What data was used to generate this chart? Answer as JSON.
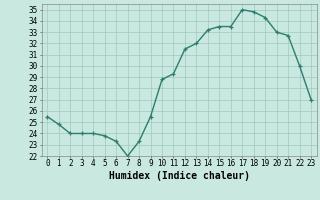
{
  "x": [
    0,
    1,
    2,
    3,
    4,
    5,
    6,
    7,
    8,
    9,
    10,
    11,
    12,
    13,
    14,
    15,
    16,
    17,
    18,
    19,
    20,
    21,
    22,
    23
  ],
  "y": [
    25.5,
    24.8,
    24.0,
    24.0,
    24.0,
    23.8,
    23.3,
    22.0,
    23.3,
    25.5,
    28.8,
    29.3,
    31.5,
    32.0,
    33.2,
    33.5,
    33.5,
    35.0,
    34.8,
    34.3,
    33.0,
    32.7,
    30.0,
    27.0
  ],
  "line_color": "#2e7d6e",
  "marker": "+",
  "marker_size": 3,
  "line_width": 1.0,
  "bg_color": "#c8e8e0",
  "grid_color": "#a0c8c0",
  "xlabel": "Humidex (Indice chaleur)",
  "xlim": [
    -0.5,
    23.5
  ],
  "ylim": [
    22,
    35.5
  ],
  "yticks": [
    22,
    23,
    24,
    25,
    26,
    27,
    28,
    29,
    30,
    31,
    32,
    33,
    34,
    35
  ],
  "xticks": [
    0,
    1,
    2,
    3,
    4,
    5,
    6,
    7,
    8,
    9,
    10,
    11,
    12,
    13,
    14,
    15,
    16,
    17,
    18,
    19,
    20,
    21,
    22,
    23
  ],
  "tick_label_fontsize": 5.5,
  "xlabel_fontsize": 7.0
}
